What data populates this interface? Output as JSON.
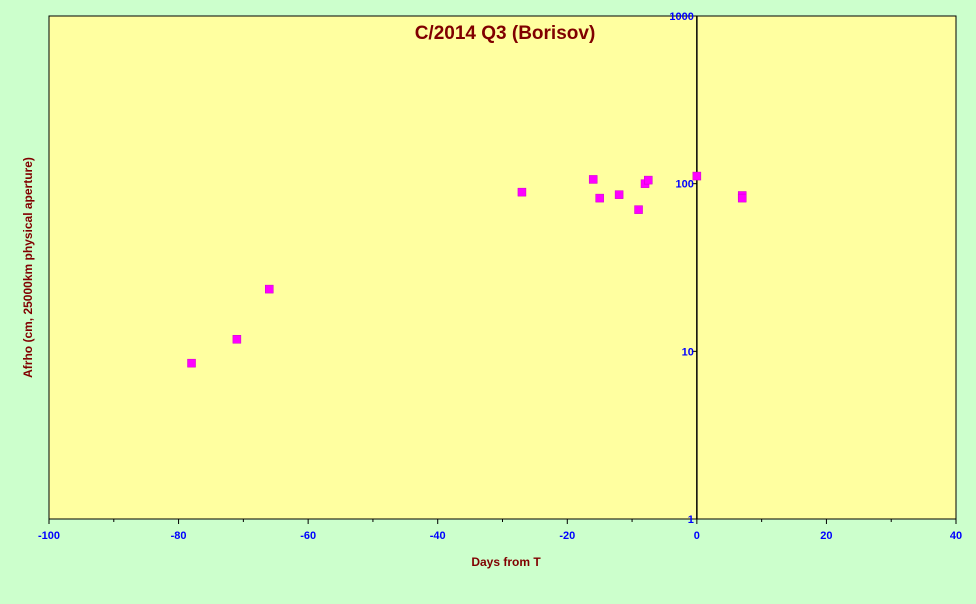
{
  "chart_data": {
    "type": "scatter",
    "title": "C/2014 Q3 (Borisov)",
    "xlabel": "Days from  T",
    "ylabel": "Afrho (cm, 25000km physical aperture)",
    "xlim": [
      -100,
      40
    ],
    "ylim": [
      1,
      1000
    ],
    "yscale": "log",
    "x_ticks": [
      "-100",
      "-80",
      "-60",
      "-40",
      "-20",
      "0",
      "20",
      "40"
    ],
    "y_ticks": [
      "1",
      "10",
      "100",
      "1000"
    ],
    "grid": false,
    "legend": "none",
    "colors": {
      "plot_background": "#ffffa0",
      "page_background": "#ccffcc",
      "marker": "#ff00ff",
      "title_text": "#800000",
      "tick_text": "#0000ff"
    },
    "points": [
      {
        "x": -78,
        "y": 8.5
      },
      {
        "x": -71,
        "y": 11.8
      },
      {
        "x": -66,
        "y": 23.5
      },
      {
        "x": -27,
        "y": 89
      },
      {
        "x": -16,
        "y": 106
      },
      {
        "x": -15,
        "y": 82
      },
      {
        "x": -12,
        "y": 86
      },
      {
        "x": -9,
        "y": 70
      },
      {
        "x": -8,
        "y": 100
      },
      {
        "x": -7.5,
        "y": 105
      },
      {
        "x": 0,
        "y": 111
      },
      {
        "x": 7,
        "y": 85
      },
      {
        "x": 7,
        "y": 82
      }
    ]
  }
}
